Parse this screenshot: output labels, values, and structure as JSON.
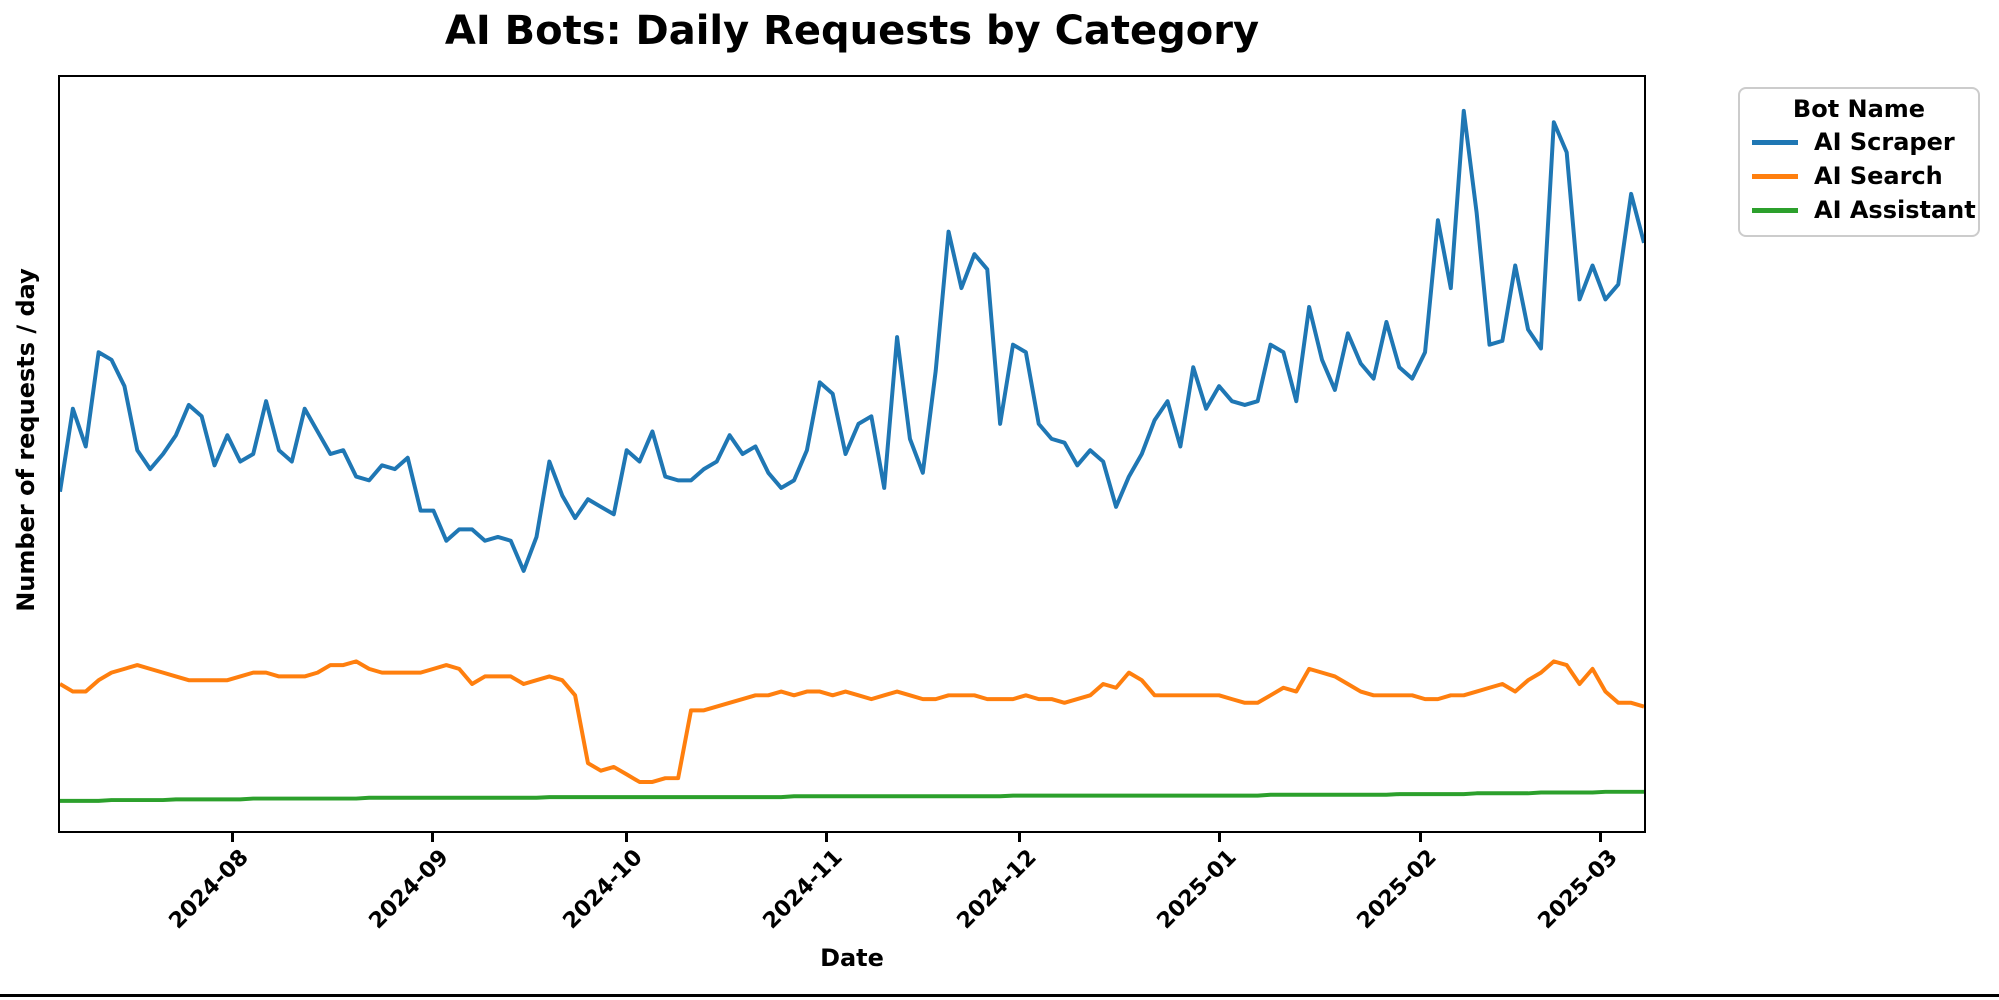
{
  "chart_data": {
    "type": "line",
    "title": "AI Bots: Daily Requests by Category",
    "xlabel": "Date",
    "ylabel": "Number of requests / day",
    "grid": false,
    "y_axis_unlabeled": true,
    "ylim": [
      0,
      1000
    ],
    "x_range": [
      "2024-07-05",
      "2025-03-08"
    ],
    "legend": {
      "title": "Bot Name",
      "position": "outside upper right"
    },
    "x_ticks": [
      {
        "label": "2024-08",
        "date": "2024-08-01"
      },
      {
        "label": "2024-09",
        "date": "2024-09-01"
      },
      {
        "label": "2024-10",
        "date": "2024-10-01"
      },
      {
        "label": "2024-11",
        "date": "2024-11-01"
      },
      {
        "label": "2024-12",
        "date": "2024-12-01"
      },
      {
        "label": "2025-01",
        "date": "2025-01-01"
      },
      {
        "label": "2025-02",
        "date": "2025-02-01"
      },
      {
        "label": "2025-03",
        "date": "2025-03-01"
      }
    ],
    "dates": [
      "2024-07-05",
      "2024-07-07",
      "2024-07-09",
      "2024-07-11",
      "2024-07-13",
      "2024-07-15",
      "2024-07-17",
      "2024-07-19",
      "2024-07-21",
      "2024-07-23",
      "2024-07-25",
      "2024-07-27",
      "2024-07-29",
      "2024-07-31",
      "2024-08-02",
      "2024-08-04",
      "2024-08-06",
      "2024-08-08",
      "2024-08-10",
      "2024-08-12",
      "2024-08-14",
      "2024-08-16",
      "2024-08-18",
      "2024-08-20",
      "2024-08-22",
      "2024-08-24",
      "2024-08-26",
      "2024-08-28",
      "2024-08-30",
      "2024-09-01",
      "2024-09-03",
      "2024-09-05",
      "2024-09-07",
      "2024-09-09",
      "2024-09-11",
      "2024-09-13",
      "2024-09-15",
      "2024-09-17",
      "2024-09-19",
      "2024-09-21",
      "2024-09-23",
      "2024-09-25",
      "2024-09-27",
      "2024-09-29",
      "2024-10-01",
      "2024-10-03",
      "2024-10-05",
      "2024-10-07",
      "2024-10-09",
      "2024-10-11",
      "2024-10-13",
      "2024-10-15",
      "2024-10-17",
      "2024-10-19",
      "2024-10-21",
      "2024-10-23",
      "2024-10-25",
      "2024-10-27",
      "2024-10-29",
      "2024-10-31",
      "2024-11-02",
      "2024-11-04",
      "2024-11-06",
      "2024-11-08",
      "2024-11-10",
      "2024-11-12",
      "2024-11-14",
      "2024-11-16",
      "2024-11-18",
      "2024-11-20",
      "2024-11-22",
      "2024-11-24",
      "2024-11-26",
      "2024-11-28",
      "2024-11-30",
      "2024-12-02",
      "2024-12-04",
      "2024-12-06",
      "2024-12-08",
      "2024-12-10",
      "2024-12-12",
      "2024-12-14",
      "2024-12-16",
      "2024-12-18",
      "2024-12-20",
      "2024-12-22",
      "2024-12-24",
      "2024-12-26",
      "2024-12-28",
      "2024-12-30",
      "2025-01-01",
      "2025-01-03",
      "2025-01-05",
      "2025-01-07",
      "2025-01-09",
      "2025-01-11",
      "2025-01-13",
      "2025-01-15",
      "2025-01-17",
      "2025-01-19",
      "2025-01-21",
      "2025-01-23",
      "2025-01-25",
      "2025-01-27",
      "2025-01-29",
      "2025-01-31",
      "2025-02-02",
      "2025-02-04",
      "2025-02-06",
      "2025-02-08",
      "2025-02-10",
      "2025-02-12",
      "2025-02-14",
      "2025-02-16",
      "2025-02-18",
      "2025-02-20",
      "2025-02-22",
      "2025-02-24",
      "2025-02-26",
      "2025-02-28",
      "2025-03-02",
      "2025-03-04",
      "2025-03-06",
      "2025-03-08"
    ],
    "series": [
      {
        "name": "AI Scraper",
        "color": "#1f77b4",
        "values": [
          450,
          560,
          510,
          635,
          625,
          590,
          505,
          480,
          500,
          525,
          565,
          550,
          485,
          525,
          490,
          500,
          570,
          505,
          490,
          560,
          530,
          500,
          505,
          470,
          465,
          485,
          480,
          495,
          425,
          425,
          385,
          400,
          400,
          385,
          390,
          385,
          345,
          390,
          490,
          445,
          415,
          440,
          430,
          420,
          505,
          490,
          530,
          470,
          465,
          465,
          480,
          490,
          525,
          500,
          510,
          475,
          455,
          465,
          505,
          595,
          580,
          500,
          540,
          550,
          455,
          655,
          520,
          475,
          610,
          795,
          720,
          765,
          745,
          540,
          645,
          635,
          540,
          520,
          515,
          485,
          505,
          490,
          430,
          470,
          500,
          545,
          570,
          510,
          615,
          560,
          590,
          570,
          565,
          570,
          645,
          635,
          570,
          695,
          625,
          585,
          660,
          620,
          600,
          675,
          615,
          600,
          635,
          810,
          720,
          955,
          820,
          645,
          650,
          750,
          665,
          640,
          940,
          900,
          705,
          750,
          705,
          725,
          845,
          780
        ]
      },
      {
        "name": "AI Search",
        "color": "#ff7f0e",
        "values": [
          195,
          185,
          185,
          200,
          210,
          215,
          220,
          215,
          210,
          205,
          200,
          200,
          200,
          200,
          205,
          210,
          210,
          205,
          205,
          205,
          210,
          220,
          220,
          225,
          215,
          210,
          210,
          210,
          210,
          215,
          220,
          215,
          195,
          205,
          205,
          205,
          195,
          200,
          205,
          200,
          180,
          90,
          80,
          85,
          75,
          65,
          65,
          70,
          70,
          160,
          160,
          165,
          170,
          175,
          180,
          180,
          185,
          180,
          185,
          185,
          180,
          185,
          180,
          175,
          180,
          185,
          180,
          175,
          175,
          180,
          180,
          180,
          175,
          175,
          175,
          180,
          175,
          175,
          170,
          175,
          180,
          195,
          190,
          210,
          200,
          180,
          180,
          180,
          180,
          180,
          180,
          175,
          170,
          170,
          180,
          190,
          185,
          215,
          210,
          205,
          195,
          185,
          180,
          180,
          180,
          180,
          175,
          175,
          180,
          180,
          185,
          190,
          195,
          185,
          200,
          210,
          225,
          220,
          195,
          215,
          185,
          170,
          170,
          165
        ]
      },
      {
        "name": "AI Assistant",
        "color": "#2ca02c",
        "values": [
          40,
          40,
          40,
          40,
          41,
          41,
          41,
          41,
          41,
          42,
          42,
          42,
          42,
          42,
          42,
          43,
          43,
          43,
          43,
          43,
          43,
          43,
          43,
          43,
          44,
          44,
          44,
          44,
          44,
          44,
          44,
          44,
          44,
          44,
          44,
          44,
          44,
          44,
          45,
          45,
          45,
          45,
          45,
          45,
          45,
          45,
          45,
          45,
          45,
          45,
          45,
          45,
          45,
          45,
          45,
          45,
          45,
          46,
          46,
          46,
          46,
          46,
          46,
          46,
          46,
          46,
          46,
          46,
          46,
          46,
          46,
          46,
          46,
          46,
          47,
          47,
          47,
          47,
          47,
          47,
          47,
          47,
          47,
          47,
          47,
          47,
          47,
          47,
          47,
          47,
          47,
          47,
          47,
          47,
          48,
          48,
          48,
          48,
          48,
          48,
          48,
          48,
          48,
          48,
          49,
          49,
          49,
          49,
          49,
          49,
          50,
          50,
          50,
          50,
          50,
          51,
          51,
          51,
          51,
          51,
          52,
          52,
          52,
          52
        ]
      }
    ]
  }
}
